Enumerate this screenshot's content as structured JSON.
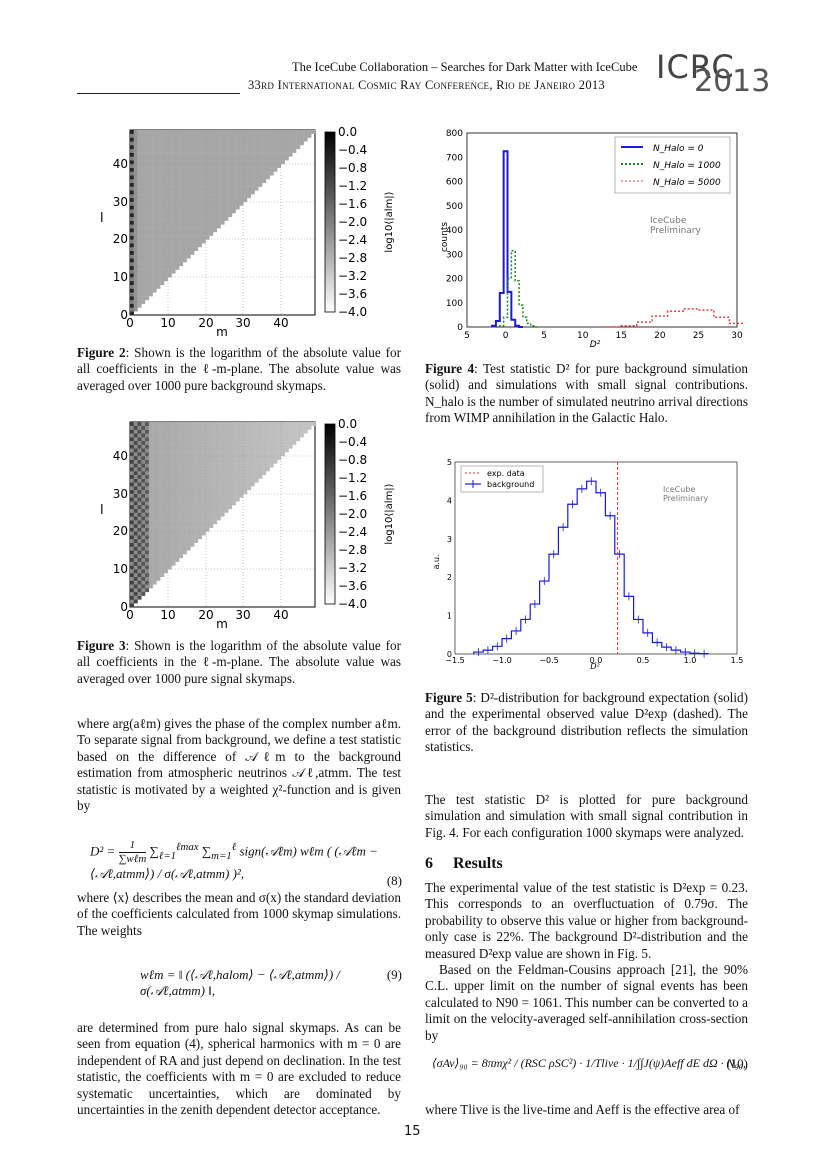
{
  "header": {
    "line1": "The IceCube Collaboration – Searches for Dark Matter with IceCube",
    "line2": "33rd International Cosmic Ray Conference, Rio de Janeiro 2013",
    "logo_top": "ICRC",
    "logo_year": "2013"
  },
  "fig2": {
    "caption_label": "Figure 2",
    "caption_text": ": Shown is the logarithm of the absolute value for all coefficients in the ℓ-m-plane. The absolute value was averaged over 1000 pure background skymaps."
  },
  "fig3": {
    "caption_label": "Figure 3",
    "caption_text": ": Shown is the logarithm of the absolute value for all coefficients in the ℓ-m-plane. The absolute value was averaged over 1000 pure signal skymaps."
  },
  "heatmap_axes": {
    "xlabel": "m",
    "ylabel": "l",
    "xticks": [
      "0",
      "10",
      "20",
      "30",
      "40"
    ],
    "yticks": [
      "0",
      "10",
      "20",
      "30",
      "40"
    ],
    "cbar_label": "log10⟨|alm|⟩",
    "cbar_ticks": [
      "0.0",
      "−0.4",
      "−0.8",
      "−1.2",
      "−1.6",
      "−2.0",
      "−2.4",
      "−2.8",
      "−3.2",
      "−3.6",
      "−4.0"
    ]
  },
  "fig4": {
    "caption_label": "Figure 4",
    "caption_text": ": Test statistic D² for pure background simulation (solid) and simulations with small signal contributions. N_halo is the number of simulated neutrino arrival directions from WIMP annihilation in the Galactic Halo."
  },
  "fig5": {
    "caption_label": "Figure 5",
    "caption_text": ": D²-distribution for background expectation (solid) and the experimental observed value D²exp (dashed). The error of the background distribution reflects the simulation statistics."
  },
  "left_text": {
    "p1": "where arg(aℓm) gives the phase of the complex number aℓm. To separate signal from background, we define a test statistic based on the difference of 𝒜ℓm to the background estimation from atmospheric neutrinos 𝒜ℓ,atmm. The test statistic is motivated by a weighted χ²-function and is given by",
    "eq8_number": "(8)",
    "p2": "where ⟨x⟩ describes the mean and σ(x) the standard deviation of the coefficients calculated from 1000 skymap simulations. The weights",
    "eq9_number": "(9)",
    "p3": "are determined from pure halo signal skymaps. As can be seen from equation (4), spherical harmonics with m = 0 are independent of RA and just depend on declination. In the test statistic, the coefficients with m = 0 are excluded to reduce systematic uncertainties, which are dominated by uncertainties in the zenith dependent detector acceptance."
  },
  "right_text": {
    "p1": "The test statistic D² is plotted for pure background simulation and simulation with small signal contribution in Fig. 4. For each configuration 1000 skymaps were analyzed.",
    "section_number": "6",
    "section_title": "Results",
    "p2": "The experimental value of the test statistic is D²exp = 0.23. This corresponds to an overfluctuation of 0.79σ. The probability to observe this value or higher from background-only case is 22%. The background D²-distribution and the measured D²exp value are shown in Fig. 5.",
    "p3": "Based on the Feldman-Cousins approach [21], the 90% C.L. upper limit on the number of signal events has been calculated to N90 = 1061. This number can be converted to a limit on the velocity-averaged self-annihilation cross-section by",
    "eq10_number": "(10)",
    "p4": "where Tlive is the live-time and Aeff is the effective area of"
  },
  "page_number": "15",
  "chart_data": [
    {
      "id": "fig2",
      "type": "heatmap",
      "xlabel": "m",
      "ylabel": "l",
      "xlim": [
        0,
        49
      ],
      "ylim": [
        0,
        49
      ],
      "colorbar": {
        "label": "log10⟨|alm|⟩",
        "range": [
          -4.0,
          0.0
        ]
      },
      "pattern": "lower triangle l ≥ m filled with roughly uniform value about -2.6; darker values near m = 0"
    },
    {
      "id": "fig3",
      "type": "heatmap",
      "xlabel": "m",
      "ylabel": "l",
      "xlim": [
        0,
        49
      ],
      "ylim": [
        0,
        49
      ],
      "colorbar": {
        "label": "log10⟨|alm|⟩",
        "range": [
          -4.0,
          0.0
        ]
      },
      "pattern": "lower triangle l ≥ m filled; checkerboard dark values at small m (m ≲ 4), lighter toward larger m"
    },
    {
      "id": "fig4",
      "type": "line",
      "xlabel": "D²",
      "ylabel": "counts",
      "xlim": [
        -5,
        30
      ],
      "ylim": [
        0,
        800
      ],
      "xticks": [
        "5",
        "0",
        "5",
        "10",
        "15",
        "20",
        "25",
        "30"
      ],
      "yticks": [
        "0",
        "100",
        "200",
        "300",
        "400",
        "500",
        "600",
        "700",
        "800"
      ],
      "legend_position": "top-right",
      "annotation": "IceCube Preliminary",
      "series": [
        {
          "name": "N_Halo = 0",
          "style": "solid",
          "color": "#1a1adb",
          "x": [
            -1.5,
            -1,
            -0.5,
            0,
            0.5,
            1,
            1.5,
            2
          ],
          "y": [
            5,
            25,
            140,
            725,
            145,
            30,
            5,
            0
          ]
        },
        {
          "name": "N_Halo = 1000",
          "style": "dotted",
          "color": "#1a8a1a",
          "x": [
            -1,
            -0.5,
            0,
            0.5,
            1,
            1.5,
            2,
            2.5,
            3,
            3.5,
            4
          ],
          "y": [
            0,
            5,
            40,
            200,
            315,
            190,
            90,
            40,
            15,
            5,
            0
          ]
        },
        {
          "name": "N_Halo = 5000",
          "style": "dotted",
          "color": "#e04040",
          "x": [
            14,
            16,
            18,
            20,
            22,
            24,
            26,
            28,
            30
          ],
          "y": [
            0,
            5,
            20,
            45,
            65,
            75,
            70,
            40,
            15
          ]
        }
      ]
    },
    {
      "id": "fig5",
      "type": "line",
      "xlabel": "D²",
      "ylabel": "a.u.",
      "xlim": [
        -1.5,
        1.5
      ],
      "ylim": [
        0,
        5
      ],
      "xticks": [
        "−1.5",
        "−1.0",
        "−0.5",
        "0.0",
        "0.5",
        "1.0",
        "1.5"
      ],
      "yticks": [
        "0",
        "1",
        "2",
        "3",
        "4",
        "5"
      ],
      "legend_position": "top-left",
      "annotation": "IceCube Preliminary",
      "series": [
        {
          "name": "exp. data",
          "style": "dashed",
          "color": "#e03030",
          "x": [
            0.23
          ]
        },
        {
          "name": "background",
          "style": "solid-step",
          "color": "#1a1adb",
          "x": [
            -1.25,
            -1.15,
            -1.05,
            -0.95,
            -0.85,
            -0.75,
            -0.65,
            -0.55,
            -0.45,
            -0.35,
            -0.25,
            -0.15,
            -0.05,
            0.05,
            0.15,
            0.25,
            0.35,
            0.45,
            0.55,
            0.65,
            0.75,
            0.85,
            0.95,
            1.05,
            1.15
          ],
          "y": [
            0.05,
            0.1,
            0.2,
            0.4,
            0.6,
            0.9,
            1.3,
            1.9,
            2.6,
            3.3,
            3.9,
            4.3,
            4.5,
            4.2,
            3.6,
            2.6,
            1.5,
            0.9,
            0.55,
            0.3,
            0.18,
            0.1,
            0.05,
            0.02,
            0.01
          ]
        }
      ]
    }
  ]
}
